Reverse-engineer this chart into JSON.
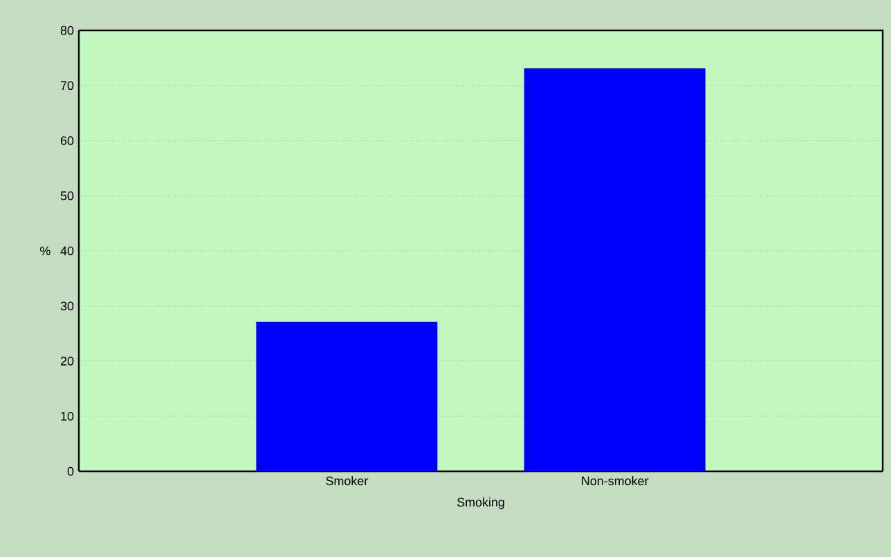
{
  "chart_data": {
    "type": "bar",
    "xlabel": "Smoking",
    "ylabel": "%",
    "categories": [
      "Smoker",
      "Non-smoker"
    ],
    "values": [
      27,
      73
    ],
    "color": "#0000ff",
    "ylim": [
      0,
      80
    ],
    "yticks": [
      0,
      10,
      20,
      30,
      40,
      50,
      60,
      70,
      80
    ],
    "grid": "y"
  }
}
